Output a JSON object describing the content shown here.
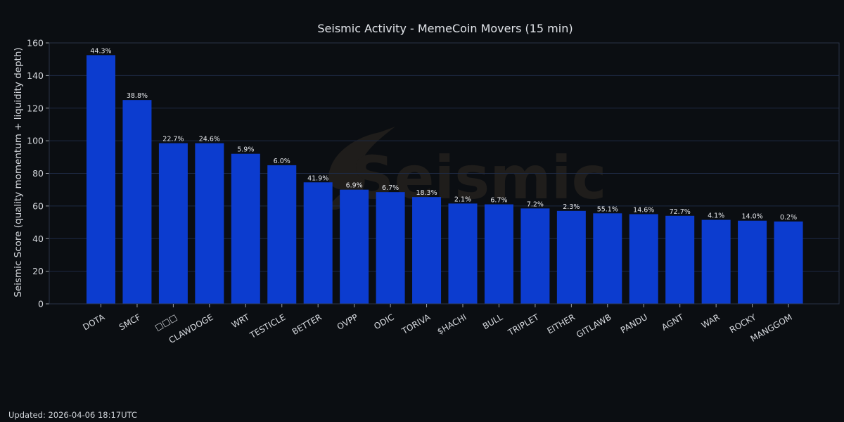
{
  "chart_data": {
    "type": "bar",
    "title": "Seismic Activity - MemeCoin Movers (15 min)",
    "xlabel": "",
    "ylabel": "Seismic Score (quality momentum + liquidity depth)",
    "ylim": [
      0,
      160
    ],
    "yticks": [
      0,
      20,
      40,
      60,
      80,
      100,
      120,
      140,
      160
    ],
    "grid": true,
    "categories": [
      "DOTA",
      "SMCF",
      "□□□",
      "CLAWDOGE",
      "WRT",
      "TESTICLE",
      "BETTER",
      "OVPP",
      "ODIC",
      "TORIVA",
      "$HACHI",
      "BULL",
      "TRIPLET",
      "EITHER",
      "GITLAWB",
      "PANDU",
      "AGNT",
      "WAR",
      "ROCKY",
      "MANGGOM"
    ],
    "values": [
      152.5,
      125.0,
      98.5,
      98.5,
      92.0,
      85.0,
      74.5,
      70.0,
      68.5,
      65.5,
      61.5,
      61.0,
      58.5,
      57.0,
      55.5,
      55.0,
      54.0,
      51.5,
      51.0,
      50.5
    ],
    "data_labels": [
      "44.3%",
      "38.8%",
      "22.7%",
      "24.6%",
      "5.9%",
      "6.0%",
      "41.9%",
      "6.9%",
      "6.7%",
      "18.3%",
      "2.1%",
      "6.7%",
      "7.2%",
      "2.3%",
      "55.1%",
      "14.6%",
      "72.7%",
      "4.1%",
      "14.0%",
      "0.2%"
    ],
    "watermark": "Seismic",
    "colors": {
      "bar": "#0c3ccf",
      "background": "#0b0e12",
      "grid": "#1e2a44",
      "text": "#d6d9de"
    }
  },
  "footer": {
    "updated": "Updated: 2026-04-06 18:17UTC"
  }
}
